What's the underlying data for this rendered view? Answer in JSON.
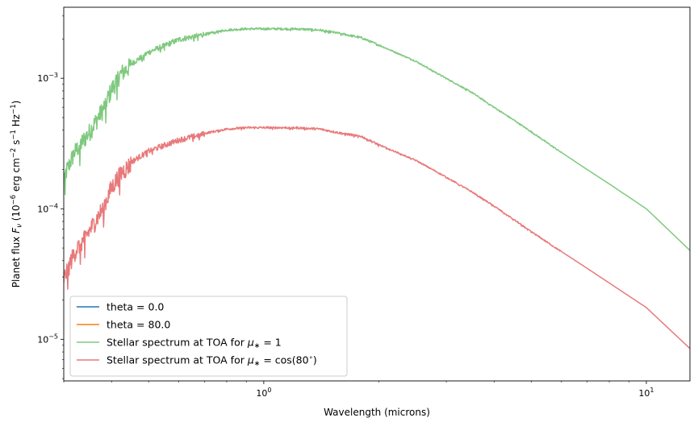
{
  "chart_data": {
    "type": "line",
    "title": "",
    "xlabel": "Wavelength (microns)",
    "ylabel_parts": {
      "prefix": "Planet flux ",
      "symbol": "F",
      "symbol_sub": "ν",
      "units_open": " (10",
      "units_exp1": "−6",
      "units_mid1": " erg cm",
      "units_exp2": "−2",
      "units_mid2": " s",
      "units_exp3": "−1",
      "units_mid3": " Hz",
      "units_exp4": "−1",
      "units_close": ")"
    },
    "xscale": "log",
    "yscale": "log",
    "xlim": [
      0.3,
      13
    ],
    "ylim": [
      4.8e-06,
      0.0035
    ],
    "grid": false,
    "legend_position": "lower-left",
    "x_ticks": [
      {
        "value": 1,
        "base": "10",
        "exp": "0"
      },
      {
        "value": 10,
        "base": "10",
        "exp": "1"
      }
    ],
    "y_ticks": [
      {
        "value": 1e-05,
        "base": "10",
        "exp": "−5"
      },
      {
        "value": 0.0001,
        "base": "10",
        "exp": "−4"
      },
      {
        "value": 0.001,
        "base": "10",
        "exp": "−3"
      }
    ],
    "series": [
      {
        "name": "theta = 0.0",
        "color": "#1f77b4",
        "visible_in_plot": false,
        "x": [],
        "y": []
      },
      {
        "name": "theta = 80.0",
        "color": "#ff7f0e",
        "visible_in_plot": false,
        "x": [],
        "y": []
      },
      {
        "name_parts": {
          "text": "Stellar spectrum at TOA for ",
          "mu": "μ",
          "sub": "∗",
          "rest": " = 1"
        },
        "color": "#7fc97f",
        "noisy": true,
        "x": [
          0.3,
          0.32,
          0.35,
          0.38,
          0.4,
          0.42,
          0.45,
          0.5,
          0.55,
          0.6,
          0.65,
          0.7,
          0.8,
          0.9,
          1.0,
          1.2,
          1.4,
          1.6,
          1.8,
          2.0,
          2.5,
          3.0,
          3.5,
          4.0,
          4.5,
          5.0,
          6.0,
          7.0,
          8.0,
          10.0,
          13.0
        ],
        "y": [
          0.00018,
          0.00028,
          0.0004,
          0.0006,
          0.00085,
          0.0011,
          0.0013,
          0.0016,
          0.0018,
          0.002,
          0.0021,
          0.0022,
          0.00235,
          0.0024,
          0.0024,
          0.0024,
          0.00235,
          0.0022,
          0.00205,
          0.0018,
          0.00135,
          0.001,
          0.00078,
          0.0006,
          0.00048,
          0.00039,
          0.00027,
          0.0002,
          0.000155,
          0.0001,
          4.8e-05
        ]
      },
      {
        "name_parts": {
          "text": "Stellar spectrum at TOA for ",
          "mu": "μ",
          "sub": "∗",
          "rest": " = cos(80",
          "deg": "∘",
          "end": ")"
        },
        "color": "#e8797a",
        "noisy": true,
        "x": [
          0.3,
          0.32,
          0.35,
          0.38,
          0.4,
          0.42,
          0.45,
          0.5,
          0.55,
          0.6,
          0.65,
          0.7,
          0.8,
          0.9,
          1.0,
          1.2,
          1.4,
          1.6,
          1.8,
          2.0,
          2.5,
          3.0,
          3.5,
          4.0,
          4.5,
          5.0,
          6.0,
          7.0,
          8.0,
          10.0,
          13.0
        ],
        "y": [
          3e-05,
          4.8e-05,
          7e-05,
          0.000105,
          0.00015,
          0.00019,
          0.00023,
          0.00028,
          0.00031,
          0.00034,
          0.00036,
          0.00038,
          0.00041,
          0.00042,
          0.00042,
          0.00042,
          0.00041,
          0.00038,
          0.00036,
          0.00031,
          0.000235,
          0.000175,
          0.000135,
          0.000105,
          8.3e-05,
          6.7e-05,
          4.7e-05,
          3.5e-05,
          2.7e-05,
          1.75e-05,
          8.5e-06
        ]
      }
    ]
  }
}
